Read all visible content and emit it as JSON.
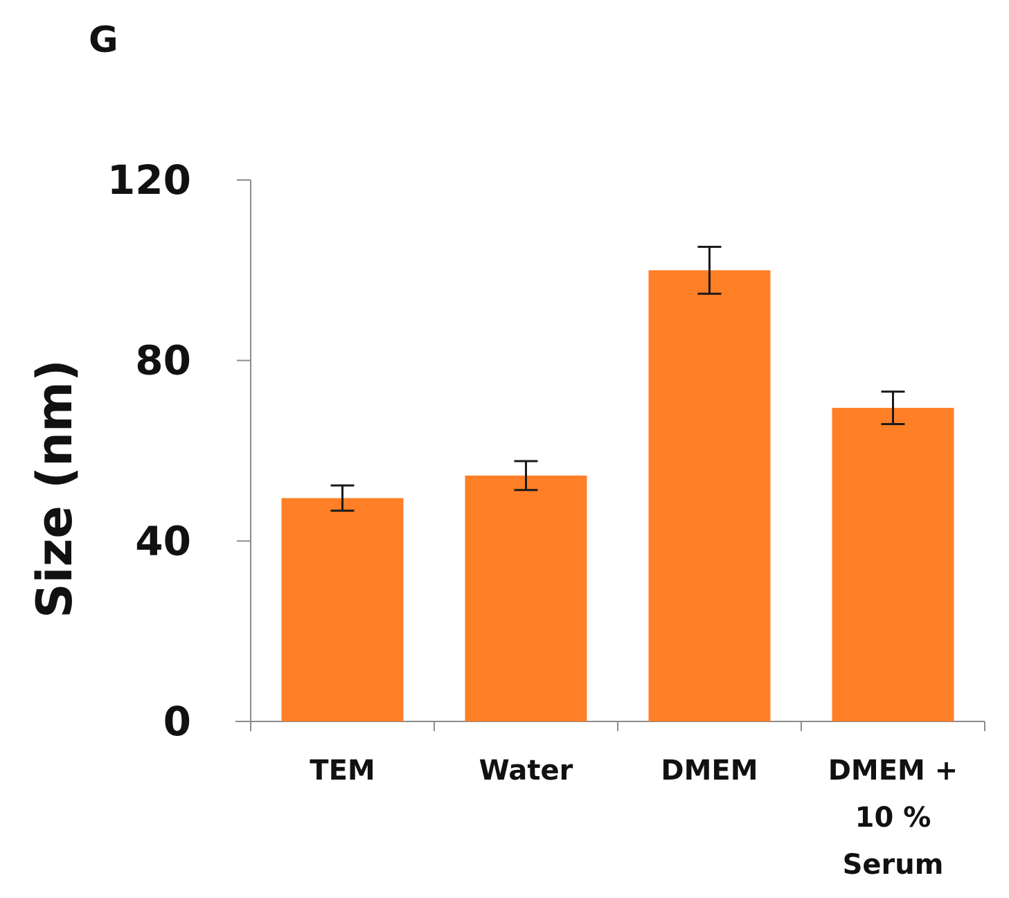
{
  "panel_label": "G",
  "colors": {
    "bar": "#FF7F27",
    "axis": "#8c8c8c",
    "error_bar": "#1a1a1a",
    "text": "#111111"
  },
  "chart_data": {
    "type": "bar",
    "title": "",
    "xlabel": "",
    "ylabel": "Size (nm)",
    "ylim": [
      0,
      120
    ],
    "yticks": [
      0,
      40,
      80,
      120
    ],
    "categories": [
      [
        "TEM"
      ],
      [
        "Water"
      ],
      [
        "DMEM"
      ],
      [
        "DMEM +",
        "10 %",
        "Serum"
      ]
    ],
    "values": [
      49.5,
      54.5,
      100,
      69.5
    ],
    "errors": [
      2.8,
      3.2,
      5.2,
      3.6
    ],
    "grid": false,
    "legend": "none"
  }
}
